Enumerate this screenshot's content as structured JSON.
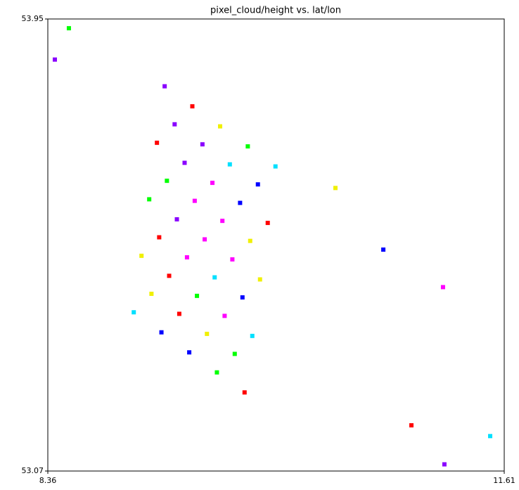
{
  "chart_data": {
    "type": "scatter",
    "title": "pixel_cloud/height vs. lat/lon",
    "xlim": [
      8.36,
      11.61
    ],
    "ylim": [
      53.07,
      53.95
    ],
    "xticks": [
      8.36,
      11.61
    ],
    "yticks": [
      53.07,
      53.95
    ],
    "series": [
      {
        "color": "#ff0000",
        "x": [
          9.389,
          9.926,
          9.137,
          9.224,
          9.153,
          9.761,
          9.296,
          10.949
        ],
        "y": [
          53.78,
          53.553,
          53.709,
          53.45,
          53.525,
          53.223,
          53.376,
          53.159
        ]
      },
      {
        "color": "#f0f000",
        "x": [
          9.587,
          9.871,
          9.027,
          9.493,
          9.801,
          9.098,
          10.408
        ],
        "y": [
          53.741,
          53.443,
          53.489,
          53.337,
          53.518,
          53.415,
          53.621
        ]
      },
      {
        "color": "#00ff00",
        "x": [
          9.784,
          9.082,
          9.422,
          9.691,
          9.208,
          9.564,
          8.51
        ],
        "y": [
          53.702,
          53.599,
          53.411,
          53.298,
          53.635,
          53.262,
          53.932
        ]
      },
      {
        "color": "#00e0ff",
        "x": [
          9.981,
          9.816,
          8.972,
          9.656,
          9.548,
          11.51
        ],
        "y": [
          53.663,
          53.333,
          53.379,
          53.667,
          53.447,
          53.138
        ]
      },
      {
        "color": "#0000ff",
        "x": [
          9.856,
          9.729,
          9.169,
          9.367,
          9.746,
          10.749
        ],
        "y": [
          53.628,
          53.592,
          53.34,
          53.301,
          53.408,
          53.501
        ]
      },
      {
        "color": "#ff00ff",
        "x": [
          9.532,
          9.477,
          9.674,
          9.619,
          9.603,
          9.351,
          9.406,
          11.174
        ],
        "y": [
          53.631,
          53.521,
          53.482,
          53.372,
          53.557,
          53.486,
          53.596,
          53.428
        ]
      },
      {
        "color": "#8a00ff",
        "x": [
          9.192,
          9.263,
          9.461,
          9.334,
          9.279,
          11.184,
          8.41
        ],
        "y": [
          53.819,
          53.745,
          53.706,
          53.67,
          53.56,
          53.083,
          53.871
        ]
      }
    ]
  }
}
